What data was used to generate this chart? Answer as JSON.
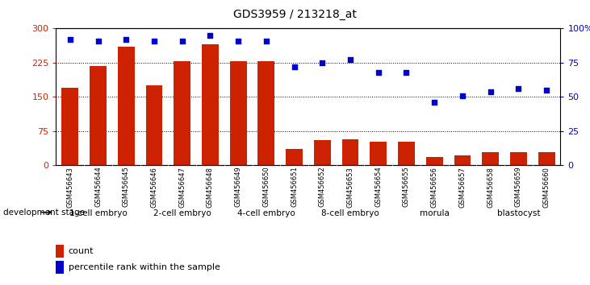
{
  "title": "GDS3959 / 213218_at",
  "samples": [
    "GSM456643",
    "GSM456644",
    "GSM456645",
    "GSM456646",
    "GSM456647",
    "GSM456648",
    "GSM456649",
    "GSM456650",
    "GSM456651",
    "GSM456652",
    "GSM456653",
    "GSM456654",
    "GSM456655",
    "GSM456656",
    "GSM456657",
    "GSM456658",
    "GSM456659",
    "GSM456660"
  ],
  "counts": [
    170,
    218,
    260,
    175,
    228,
    265,
    228,
    228,
    35,
    55,
    57,
    52,
    52,
    18,
    22,
    28,
    28,
    28
  ],
  "percentiles": [
    92,
    91,
    92,
    91,
    91,
    95,
    91,
    91,
    72,
    75,
    77,
    68,
    68,
    46,
    51,
    54,
    56,
    55
  ],
  "stages": [
    {
      "label": "1-cell embryo",
      "start": 0,
      "end": 3
    },
    {
      "label": "2-cell embryo",
      "start": 3,
      "end": 6
    },
    {
      "label": "4-cell embryo",
      "start": 6,
      "end": 9
    },
    {
      "label": "8-cell embryo",
      "start": 9,
      "end": 12
    },
    {
      "label": "morula",
      "start": 12,
      "end": 15
    },
    {
      "label": "blastocyst",
      "start": 15,
      "end": 18
    }
  ],
  "bar_color": "#cc2200",
  "dot_color": "#0000cc",
  "ylim_left": [
    0,
    300
  ],
  "ylim_right": [
    0,
    100
  ],
  "yticks_left": [
    0,
    75,
    150,
    225,
    300
  ],
  "yticks_right": [
    0,
    25,
    50,
    75,
    100
  ],
  "grid_color": "black",
  "tick_label_color_left": "#cc2200",
  "tick_label_color_right": "#0000cc",
  "xlabel_stage": "development stage",
  "legend_count": "count",
  "legend_pct": "percentile rank within the sample",
  "stage_green": "#90ee90",
  "bg_gray": "#d3d3d3"
}
